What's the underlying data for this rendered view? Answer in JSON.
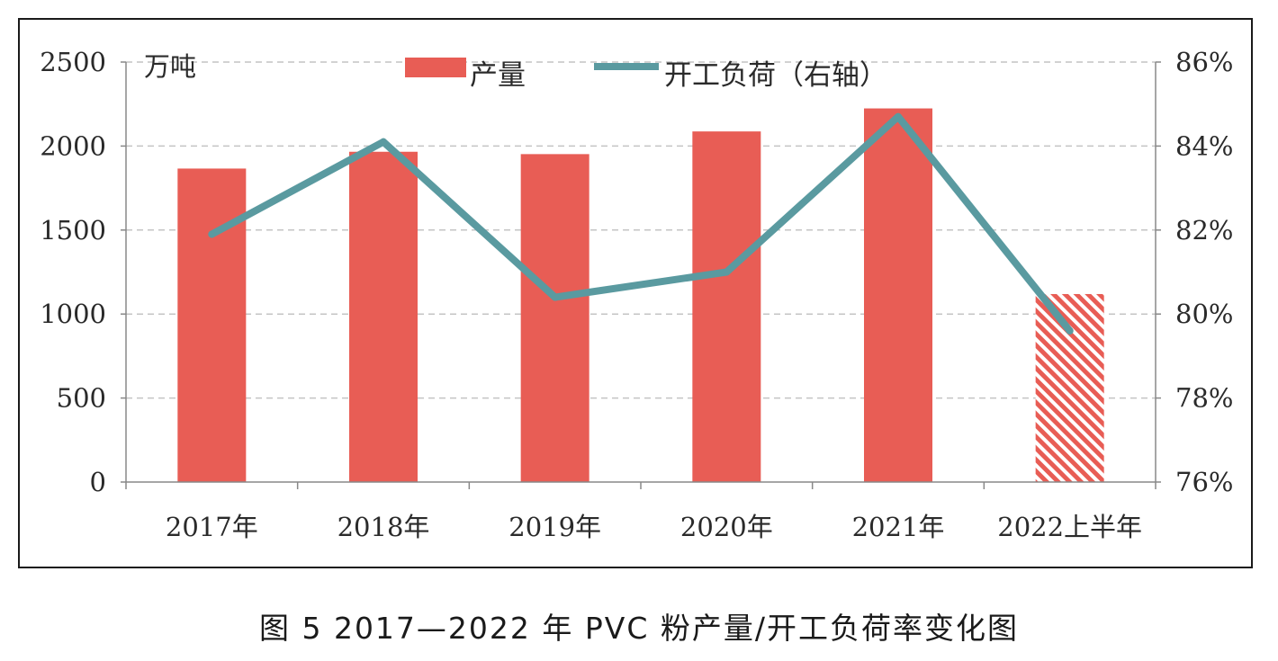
{
  "chart_data": {
    "type": "bar+line",
    "categories": [
      "2017年",
      "2018年",
      "2019年",
      "2020年",
      "2021年",
      "2022上半年"
    ],
    "series": [
      {
        "name": "产量",
        "type": "bar",
        "axis": "left",
        "values": [
          1866,
          1966,
          1952,
          2087,
          2224,
          1119
        ],
        "color": "#e85d55",
        "hatched_last": true
      },
      {
        "name": "开工负荷（右轴）",
        "type": "line",
        "axis": "right",
        "values": [
          81.9,
          84.1,
          80.4,
          81.0,
          84.7,
          79.6
        ],
        "color": "#5a9aa0"
      }
    ],
    "y_left": {
      "unit": "万吨",
      "min": 0,
      "max": 2500,
      "ticks": [
        "0",
        "500",
        "1000",
        "1500",
        "2000",
        "2500"
      ]
    },
    "y_right": {
      "min": 76,
      "max": 86,
      "ticks": [
        "76%",
        "78%",
        "80%",
        "82%",
        "84%",
        "86%"
      ]
    },
    "grid": "horizontal-dashed",
    "legend_position": "top-center"
  },
  "caption": "图 5  2017—2022 年 PVC 粉产量/开工负荷率变化图"
}
